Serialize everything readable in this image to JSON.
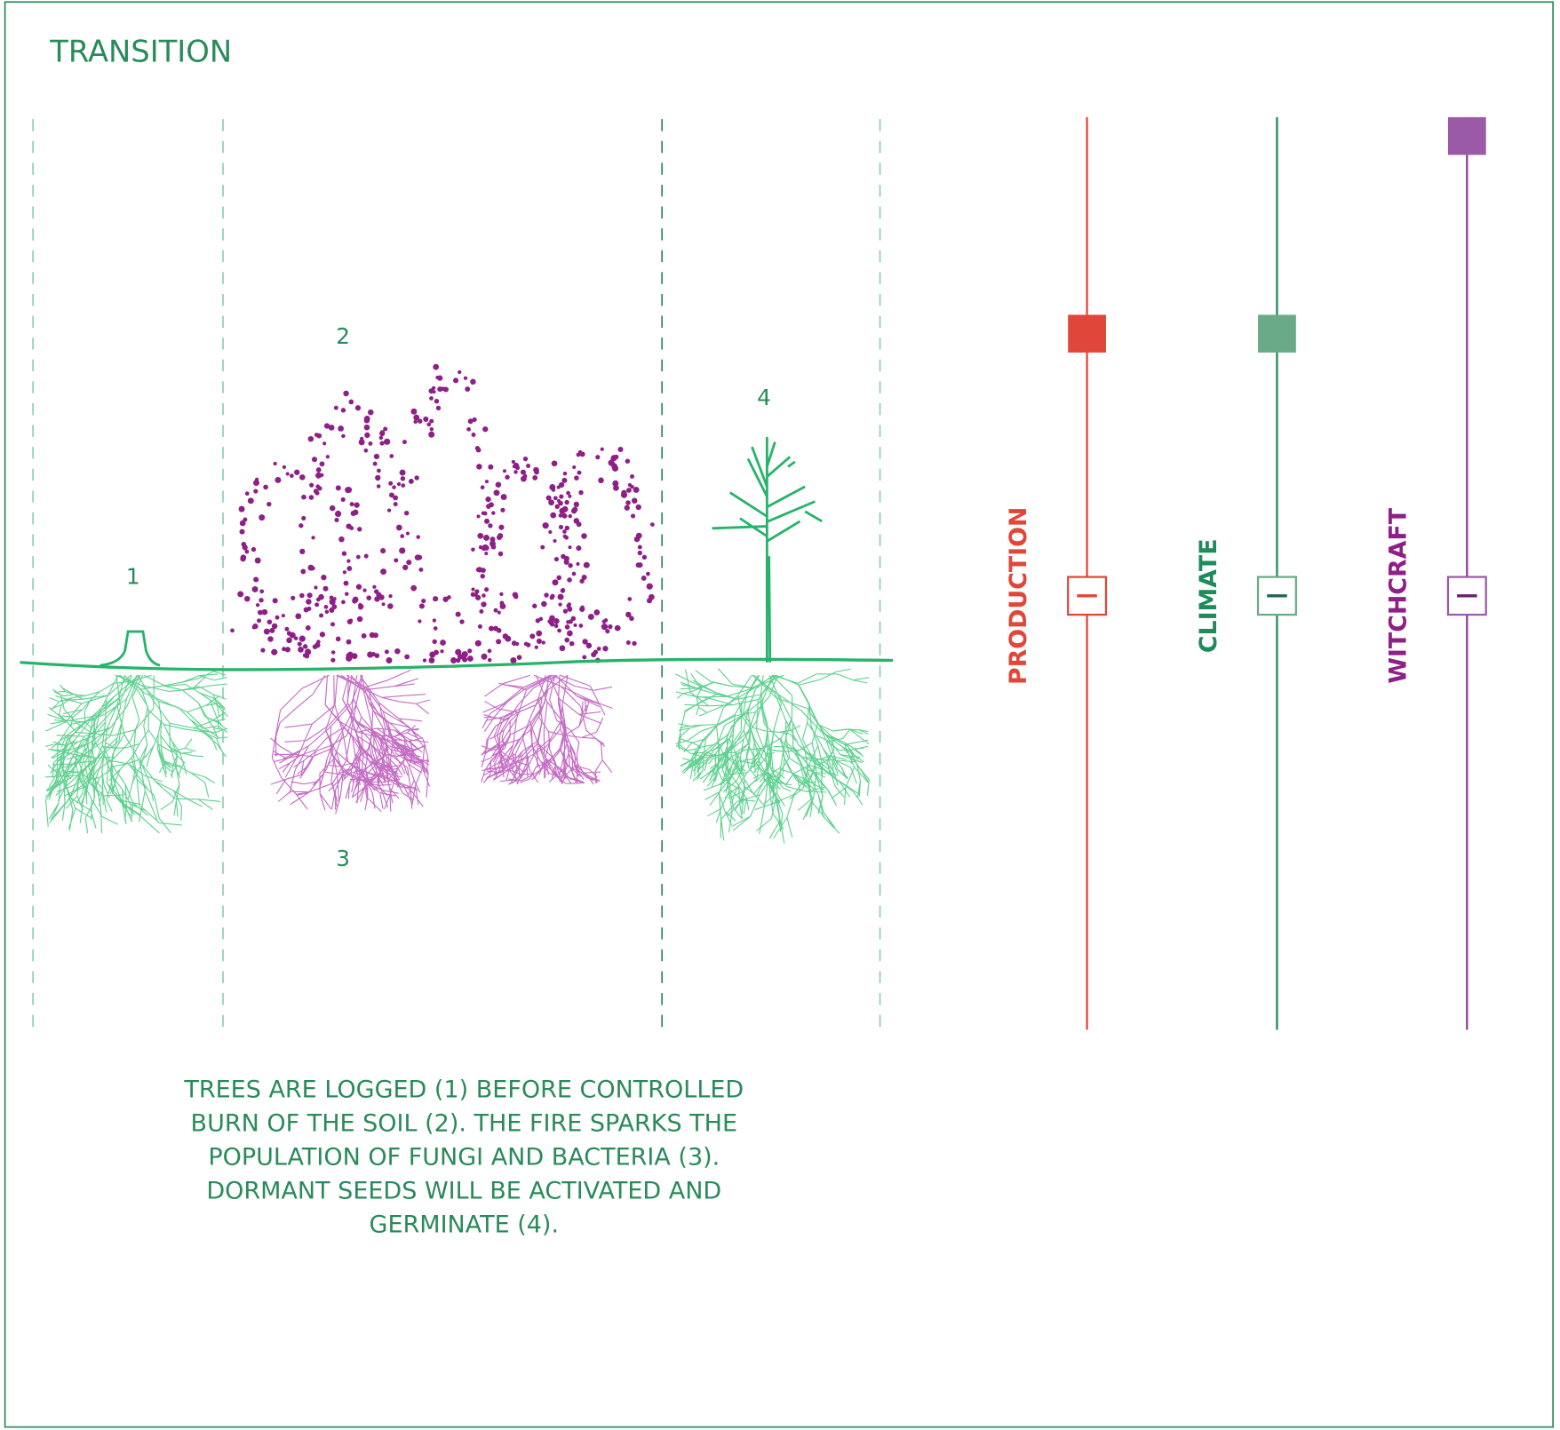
{
  "header": {
    "title": "TRANSITION"
  },
  "diagram": {
    "labels": [
      "1",
      "2",
      "3",
      "4"
    ]
  },
  "caption": {
    "lines": [
      "TREES ARE LOGGED (1) BEFORE CONTROLLED",
      "BURN OF THE SOIL (2). THE FIRE SPARKS THE",
      "POPULATION OF FUNGI AND BACTERIA (3).",
      "DORMANT SEEDS WILL BE ACTIVATED AND",
      "GERMINATE (4)."
    ]
  },
  "sliders": [
    {
      "name": "PRODUCTION"
    },
    {
      "name": "CLIMATE"
    },
    {
      "name": "WITCHCRAFT"
    }
  ]
}
